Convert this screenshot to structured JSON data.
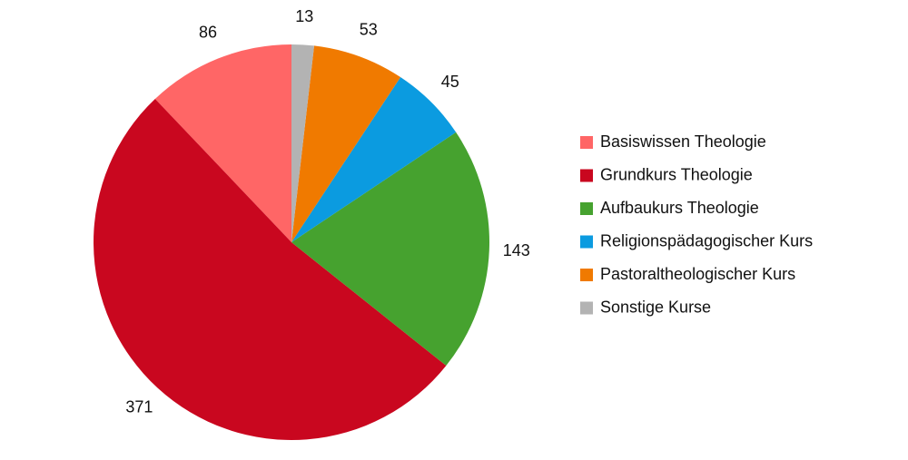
{
  "chart_data": {
    "type": "pie",
    "categories": [
      "Basiswissen Theologie",
      "Grundkurs Theologie",
      "Aufbaukurs Theologie",
      "Religionspädagogischer Kurs",
      "Pastoraltheologischer Kurs",
      "Sonstige Kurse"
    ],
    "values": [
      86,
      371,
      143,
      45,
      53,
      13
    ],
    "colors": [
      "#ff6666",
      "#c9071f",
      "#46a22f",
      "#0b9be0",
      "#f07a00",
      "#b3b3b3"
    ],
    "legend": "right"
  }
}
